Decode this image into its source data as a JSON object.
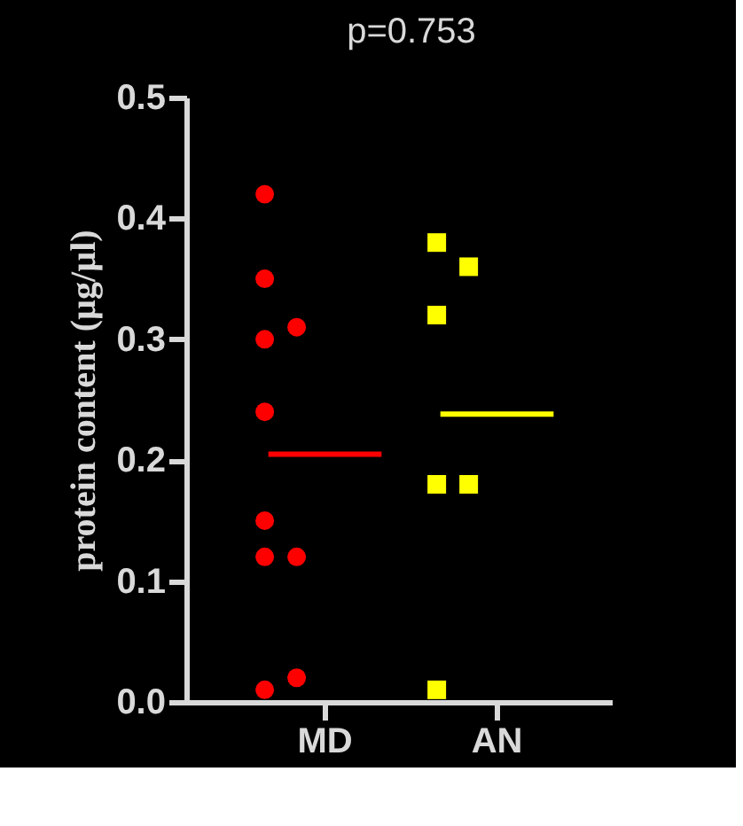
{
  "chart_data": {
    "type": "scatter",
    "categories": [
      "MD",
      "AN"
    ],
    "ylabel": "protein content (µg/µl)",
    "ylim": [
      0,
      0.5
    ],
    "yticks": [
      {
        "value": 0,
        "label": "0.0"
      },
      {
        "value": 0.1,
        "label": "0.1"
      },
      {
        "value": 0.2,
        "label": "0.2"
      },
      {
        "value": 0.3,
        "label": "0.3"
      },
      {
        "value": 0.4,
        "label": "0.4"
      },
      {
        "value": 0.5,
        "label": "0.5"
      }
    ],
    "series": [
      {
        "marker": "circle",
        "color": "#ff0000",
        "x": [
          "MD",
          "MD",
          "MD",
          "MD",
          "MD",
          "MD",
          "MD",
          "MD",
          "MD",
          "MD"
        ],
        "values": [
          0.42,
          0.35,
          0.3,
          0.31,
          0.24,
          0.15,
          0.12,
          0.12,
          0.01,
          0.02
        ]
      },
      {
        "marker": "square",
        "color": "#ffff00",
        "x": [
          "AN",
          "AN",
          "AN",
          "AN",
          "AN",
          "AN"
        ],
        "values": [
          0.38,
          0.36,
          0.32,
          0.18,
          0.18,
          0.01
        ]
      }
    ],
    "ref_lines": [
      {
        "axis": "y",
        "value": 0.205,
        "color": "#ff0000"
      },
      {
        "axis": "y",
        "value": 0.238,
        "color": "#ffff00"
      }
    ],
    "annotations": [
      "p=0.753"
    ]
  }
}
